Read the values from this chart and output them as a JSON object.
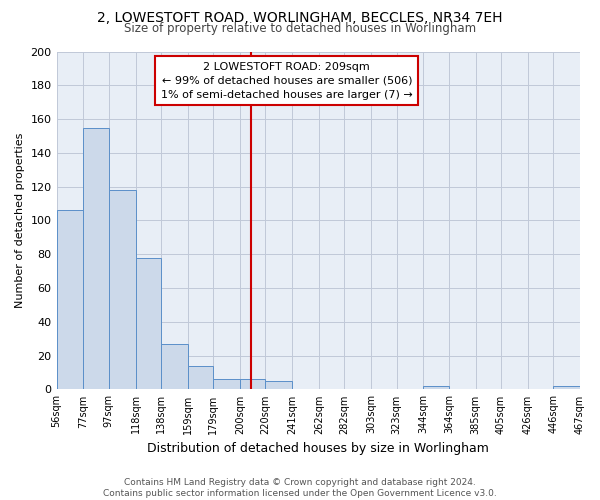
{
  "title_line1": "2, LOWESTOFT ROAD, WORLINGHAM, BECCLES, NR34 7EH",
  "title_line2": "Size of property relative to detached houses in Worlingham",
  "xlabel": "Distribution of detached houses by size in Worlingham",
  "ylabel": "Number of detached properties",
  "bin_labels": [
    "56sqm",
    "77sqm",
    "97sqm",
    "118sqm",
    "138sqm",
    "159sqm",
    "179sqm",
    "200sqm",
    "220sqm",
    "241sqm",
    "262sqm",
    "282sqm",
    "303sqm",
    "323sqm",
    "344sqm",
    "364sqm",
    "385sqm",
    "405sqm",
    "426sqm",
    "446sqm",
    "467sqm"
  ],
  "bar_heights": [
    106,
    155,
    118,
    78,
    27,
    14,
    6,
    6,
    5,
    0,
    0,
    0,
    0,
    0,
    2,
    0,
    0,
    0,
    0,
    2,
    0
  ],
  "bin_edges": [
    56,
    77,
    97,
    118,
    138,
    159,
    179,
    200,
    220,
    241,
    262,
    282,
    303,
    323,
    344,
    364,
    385,
    405,
    426,
    446,
    467
  ],
  "bar_fill_color": "#ccd9ea",
  "bar_edge_color": "#5b8fc9",
  "grid_color": "#c0c8d8",
  "bg_color": "#e8eef6",
  "vline_x": 209,
  "vline_color": "#cc0000",
  "annotation_line1": "2 LOWESTOFT ROAD: 209sqm",
  "annotation_line2": "← 99% of detached houses are smaller (506)",
  "annotation_line3": "1% of semi-detached houses are larger (7) →",
  "ylim": [
    0,
    200
  ],
  "yticks": [
    0,
    20,
    40,
    60,
    80,
    100,
    120,
    140,
    160,
    180,
    200
  ],
  "footer_line1": "Contains HM Land Registry data © Crown copyright and database right 2024.",
  "footer_line2": "Contains public sector information licensed under the Open Government Licence v3.0."
}
